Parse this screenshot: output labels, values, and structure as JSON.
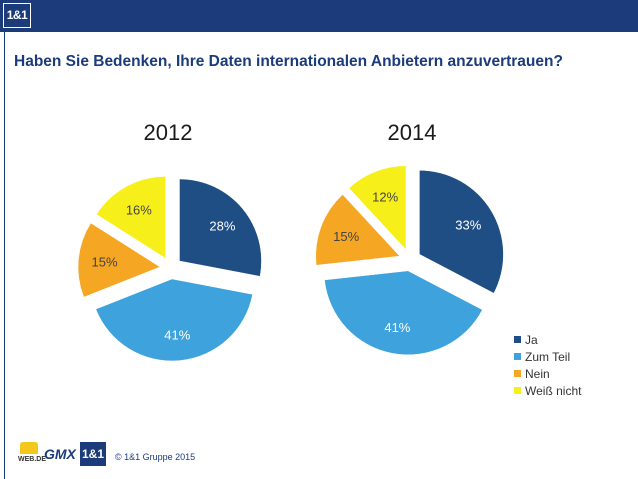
{
  "header": {
    "logo_text": "1&1"
  },
  "page": {
    "title": "Haben Sie Bedenken, Ihre Daten internationalen Anbietern anzuvertrauen?"
  },
  "chart_data": [
    {
      "type": "pie",
      "title": "2012",
      "categories": [
        "Ja",
        "Zum Teil",
        "Nein",
        "Weiß nicht"
      ],
      "values": [
        28,
        41,
        15,
        16
      ],
      "labels": [
        "28%",
        "41%",
        "15%",
        "16%"
      ],
      "exploded": true
    },
    {
      "type": "pie",
      "title": "2014",
      "categories": [
        "Ja",
        "Zum Teil",
        "Nein",
        "Weiß nicht"
      ],
      "values": [
        33,
        41,
        15,
        12
      ],
      "labels": [
        "33%",
        "41%",
        "15%",
        "12%"
      ],
      "exploded": true
    }
  ],
  "legend": {
    "position": "bottom-right",
    "items": [
      {
        "label": "Ja",
        "color": "#1f4e85"
      },
      {
        "label": "Zum Teil",
        "color": "#3ea2dc"
      },
      {
        "label": "Nein",
        "color": "#f5a623"
      },
      {
        "label": "Weiß nicht",
        "color": "#f7ef1a"
      }
    ]
  },
  "footer": {
    "webde_text": "WEB.DE",
    "gmx_text": "GMX",
    "brand_logo_text": "1&1",
    "copyright": "© 1&1 Gruppe 2015"
  }
}
